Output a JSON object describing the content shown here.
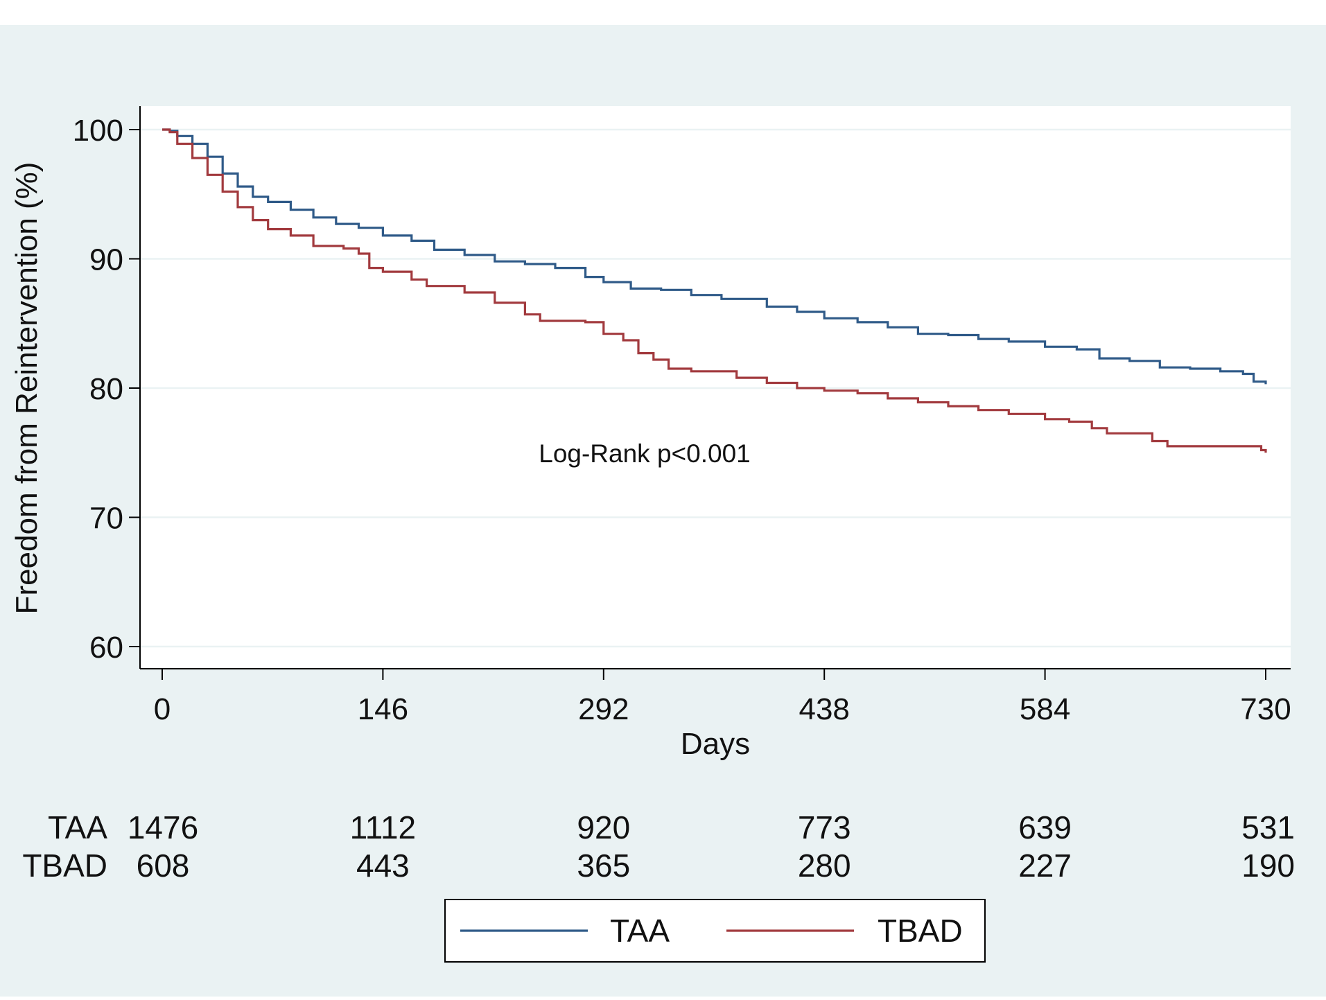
{
  "chart_data": {
    "type": "line",
    "xlabel": "Days",
    "ylabel": "Freedom from Reintervention (%)",
    "xlim": [
      0,
      730
    ],
    "ylim": [
      60,
      100
    ],
    "x_ticks": [
      0,
      146,
      292,
      438,
      584,
      730
    ],
    "y_ticks": [
      60,
      70,
      80,
      90,
      100
    ],
    "x_tick_labels": [
      "0",
      "146",
      "292",
      "438",
      "584",
      "730"
    ],
    "y_tick_labels": [
      "60",
      "70",
      "80",
      "90",
      "100"
    ],
    "grid": true,
    "step": true,
    "annotation": "Log-Rank p<0.001",
    "series": [
      {
        "name": "TAA",
        "color": "#2f5a88",
        "x": [
          0,
          5,
          10,
          20,
          30,
          40,
          50,
          60,
          70,
          85,
          100,
          115,
          130,
          146,
          165,
          180,
          200,
          220,
          240,
          260,
          280,
          292,
          310,
          330,
          350,
          370,
          400,
          420,
          438,
          460,
          480,
          500,
          520,
          540,
          560,
          584,
          605,
          620,
          640,
          660,
          680,
          700,
          715,
          722,
          730
        ],
        "y": [
          100,
          99.9,
          99.5,
          98.9,
          97.9,
          96.6,
          95.6,
          94.8,
          94.4,
          93.8,
          93.2,
          92.7,
          92.4,
          91.8,
          91.4,
          90.7,
          90.3,
          89.8,
          89.6,
          89.3,
          88.6,
          88.2,
          87.7,
          87.6,
          87.2,
          86.9,
          86.3,
          85.9,
          85.4,
          85.1,
          84.7,
          84.2,
          84.1,
          83.8,
          83.6,
          83.2,
          83.0,
          82.3,
          82.1,
          81.6,
          81.5,
          81.3,
          81.1,
          80.5,
          80.3
        ]
      },
      {
        "name": "TBAD",
        "color": "#a23a3e",
        "x": [
          0,
          5,
          10,
          20,
          30,
          40,
          50,
          60,
          70,
          85,
          100,
          120,
          130,
          137,
          146,
          165,
          175,
          200,
          220,
          240,
          250,
          270,
          280,
          292,
          305,
          315,
          325,
          335,
          350,
          380,
          400,
          420,
          438,
          460,
          480,
          500,
          520,
          540,
          560,
          584,
          600,
          615,
          625,
          645,
          655,
          665,
          690,
          720,
          727,
          730
        ],
        "y": [
          100,
          99.8,
          98.9,
          97.8,
          96.5,
          95.2,
          94.0,
          93.0,
          92.3,
          91.8,
          91.0,
          90.8,
          90.4,
          89.3,
          89.0,
          88.4,
          87.9,
          87.4,
          86.6,
          85.7,
          85.2,
          85.2,
          85.1,
          84.2,
          83.7,
          82.7,
          82.2,
          81.5,
          81.3,
          80.8,
          80.4,
          80.0,
          79.8,
          79.6,
          79.2,
          78.9,
          78.6,
          78.3,
          78.0,
          77.6,
          77.4,
          76.9,
          76.5,
          76.5,
          75.9,
          75.5,
          75.5,
          75.5,
          75.2,
          75.0
        ]
      }
    ],
    "at_risk": {
      "times": [
        0,
        146,
        292,
        438,
        584,
        730
      ],
      "rows": [
        {
          "label": "TAA",
          "counts": [
            "1476",
            "1112",
            "920",
            "773",
            "639",
            "531"
          ]
        },
        {
          "label": "TBAD",
          "counts": [
            "608",
            "443",
            "365",
            "280",
            "227",
            "190"
          ]
        }
      ]
    },
    "legend": {
      "position": "bottom",
      "entries": [
        "TAA",
        "TBAD"
      ]
    }
  },
  "colors": {
    "outer_background": "#eaf2f3",
    "plot_background": "#ffffff",
    "grid": "#eaf2f3",
    "axis": "#000000"
  }
}
